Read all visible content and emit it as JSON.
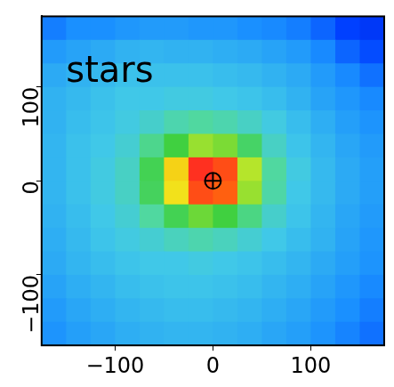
{
  "chart_data": {
    "type": "heatmap",
    "annotations": [
      {
        "text": "stars",
        "x": -150,
        "y": 115
      }
    ],
    "x": [
      -162.5,
      -137.5,
      -112.5,
      -87.5,
      -62.5,
      -37.5,
      -12.5,
      12.5,
      37.5,
      62.5,
      87.5,
      112.5,
      137.5,
      162.5
    ],
    "y": [
      162.5,
      137.5,
      112.5,
      87.5,
      62.5,
      37.5,
      12.5,
      -12.5,
      -37.5,
      -62.5,
      -87.5,
      -112.5,
      -137.5,
      -162.5
    ],
    "z": [
      [
        0.22,
        0.25,
        0.25,
        0.27,
        0.28,
        0.28,
        0.27,
        0.27,
        0.25,
        0.24,
        0.22,
        0.18,
        0.12,
        0.08
      ],
      [
        0.28,
        0.3,
        0.32,
        0.34,
        0.35,
        0.34,
        0.34,
        0.33,
        0.32,
        0.3,
        0.28,
        0.24,
        0.18,
        0.14
      ],
      [
        0.32,
        0.34,
        0.36,
        0.38,
        0.38,
        0.38,
        0.38,
        0.37,
        0.36,
        0.34,
        0.32,
        0.28,
        0.24,
        0.2
      ],
      [
        0.34,
        0.36,
        0.38,
        0.4,
        0.4,
        0.41,
        0.41,
        0.4,
        0.39,
        0.37,
        0.34,
        0.3,
        0.27,
        0.24
      ],
      [
        0.34,
        0.37,
        0.39,
        0.41,
        0.44,
        0.48,
        0.5,
        0.48,
        0.45,
        0.41,
        0.37,
        0.33,
        0.29,
        0.26
      ],
      [
        0.35,
        0.38,
        0.4,
        0.43,
        0.52,
        0.6,
        0.66,
        0.64,
        0.56,
        0.45,
        0.39,
        0.35,
        0.31,
        0.28
      ],
      [
        0.35,
        0.38,
        0.41,
        0.45,
        0.58,
        0.76,
        0.95,
        0.92,
        0.68,
        0.5,
        0.41,
        0.36,
        0.32,
        0.29
      ],
      [
        0.35,
        0.38,
        0.41,
        0.45,
        0.57,
        0.74,
        0.92,
        0.9,
        0.66,
        0.49,
        0.4,
        0.36,
        0.32,
        0.29
      ],
      [
        0.34,
        0.37,
        0.4,
        0.43,
        0.5,
        0.58,
        0.63,
        0.6,
        0.53,
        0.44,
        0.39,
        0.35,
        0.31,
        0.28
      ],
      [
        0.33,
        0.36,
        0.39,
        0.41,
        0.43,
        0.46,
        0.48,
        0.46,
        0.43,
        0.4,
        0.37,
        0.34,
        0.3,
        0.27
      ],
      [
        0.32,
        0.35,
        0.37,
        0.39,
        0.4,
        0.4,
        0.41,
        0.4,
        0.39,
        0.37,
        0.35,
        0.32,
        0.29,
        0.26
      ],
      [
        0.3,
        0.33,
        0.35,
        0.37,
        0.38,
        0.39,
        0.39,
        0.38,
        0.37,
        0.35,
        0.33,
        0.3,
        0.27,
        0.24
      ],
      [
        0.28,
        0.31,
        0.33,
        0.35,
        0.36,
        0.37,
        0.37,
        0.36,
        0.35,
        0.33,
        0.31,
        0.28,
        0.25,
        0.22
      ],
      [
        0.26,
        0.29,
        0.31,
        0.33,
        0.34,
        0.35,
        0.35,
        0.34,
        0.33,
        0.31,
        0.29,
        0.26,
        0.23,
        0.2
      ]
    ],
    "zlim": [
      0,
      1
    ],
    "markers": [
      {
        "x": 0,
        "y": 0,
        "marker": "circled_plus"
      }
    ],
    "xlim": [
      -175,
      175
    ],
    "ylim": [
      -175,
      175
    ],
    "xticks": [
      {
        "value": -100,
        "label": "−100"
      },
      0,
      100
    ],
    "yticks": [
      {
        "value": -100,
        "label": "−100"
      },
      0,
      100
    ],
    "grid": false
  }
}
